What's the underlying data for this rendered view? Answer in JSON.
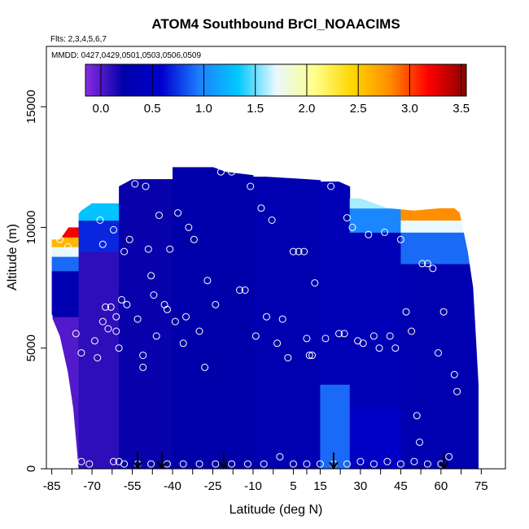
{
  "chart_data": {
    "type": "heatmap",
    "title": "ATOM4 Southbound BrCl_NOAACIMS",
    "notes": {
      "flights": "Flts: 2,3,4,5,6,7",
      "dates": "MMDD: 0427,0429,0501,0503,0506,0509"
    },
    "xlabel": "Latitude (deg N)",
    "ylabel": "Altitude (m)",
    "xlim": [
      -87,
      84
    ],
    "ylim": [
      0,
      17500
    ],
    "xticks": [
      -85,
      -70,
      -55,
      -40,
      -25,
      -10,
      5,
      15,
      30,
      45,
      60,
      75
    ],
    "xtick_labels": [
      "-85",
      "-70",
      "-55",
      "-40",
      "-25",
      "-10",
      "5",
      "15",
      "30",
      "45",
      "60",
      "75"
    ],
    "yticks": [
      0,
      5000,
      10000,
      15000
    ],
    "ytick_labels": [
      "0",
      "5000",
      "10000",
      "15000"
    ],
    "colorbar": {
      "min": -0.15,
      "max": 3.55,
      "ticks": [
        0.0,
        0.5,
        1.0,
        1.5,
        2.0,
        2.5,
        3.0,
        3.5
      ],
      "tick_labels": [
        "0.0",
        "0.5",
        "1.0",
        "1.5",
        "2.0",
        "2.5",
        "3.0",
        "3.5"
      ],
      "colors": [
        "#8a2be2",
        "#0000a8",
        "#0000d0",
        "#1e7fff",
        "#00c8ff",
        "#e8f8ff",
        "#ffff8c",
        "#ffd700",
        "#ff8c00",
        "#ff0000",
        "#8b0000"
      ]
    },
    "profile_arrows_lat": [
      -53,
      -44,
      -21,
      20,
      61
    ],
    "field_boundary": {
      "top": [
        [
          -85,
          9500
        ],
        [
          -82,
          9500
        ],
        [
          -80,
          9800
        ],
        [
          -77,
          10300
        ],
        [
          -74,
          10700
        ],
        [
          -70,
          11000
        ],
        [
          -65,
          11300
        ],
        [
          -60,
          11700
        ],
        [
          -55,
          12000
        ],
        [
          -52,
          12000
        ],
        [
          -48,
          12500
        ],
        [
          -25,
          12500
        ],
        [
          -20,
          12300
        ],
        [
          -5,
          12100
        ],
        [
          10,
          12000
        ],
        [
          22,
          11900
        ],
        [
          26,
          11700
        ],
        [
          30,
          11200
        ],
        [
          40,
          10800
        ],
        [
          50,
          10700
        ],
        [
          60,
          10800
        ],
        [
          65,
          10800
        ],
        [
          67,
          10600
        ],
        [
          70,
          9000
        ],
        [
          72,
          7500
        ],
        [
          73,
          5500
        ],
        [
          74,
          3500
        ],
        [
          74,
          0
        ]
      ],
      "bottom_left": [
        [
          -85,
          6300
        ],
        [
          -82,
          5500
        ],
        [
          -79,
          4000
        ],
        [
          -77,
          2500
        ],
        [
          -75,
          0
        ]
      ]
    },
    "field": [
      {
        "lat": [
          -86,
          -75
        ],
        "alt": [
          0,
          6300
        ],
        "value": 0.0
      },
      {
        "lat": [
          -86,
          -75
        ],
        "alt": [
          6300,
          8200
        ],
        "value": 0.3
      },
      {
        "lat": [
          -86,
          -75
        ],
        "alt": [
          8200,
          8800
        ],
        "value": 0.9
      },
      {
        "lat": [
          -86,
          -75
        ],
        "alt": [
          8800,
          9200
        ],
        "value": 1.7
      },
      {
        "lat": [
          -86,
          -75
        ],
        "alt": [
          9200,
          9600
        ],
        "value": 2.6
      },
      {
        "lat": [
          -86,
          -75
        ],
        "alt": [
          9600,
          10000
        ],
        "value": 3.2
      },
      {
        "lat": [
          -75,
          -60
        ],
        "alt": [
          0,
          9000
        ],
        "value": 0.1
      },
      {
        "lat": [
          -75,
          -60
        ],
        "alt": [
          9000,
          10300
        ],
        "value": 0.7
      },
      {
        "lat": [
          -75,
          -60
        ],
        "alt": [
          10300,
          11000
        ],
        "value": 1.3
      },
      {
        "lat": [
          -60,
          -40
        ],
        "alt": [
          0,
          12000
        ],
        "value": 0.2
      },
      {
        "lat": [
          -40,
          -10
        ],
        "alt": [
          0,
          12500
        ],
        "value": 0.25
      },
      {
        "lat": [
          -10,
          15
        ],
        "alt": [
          0,
          12100
        ],
        "value": 0.3
      },
      {
        "lat": [
          15,
          26
        ],
        "alt": [
          0,
          3500
        ],
        "value": 0.9
      },
      {
        "lat": [
          15,
          26
        ],
        "alt": [
          3500,
          11900
        ],
        "value": 0.35
      },
      {
        "lat": [
          26,
          45
        ],
        "alt": [
          0,
          2500
        ],
        "value": 0.5
      },
      {
        "lat": [
          26,
          45
        ],
        "alt": [
          2500,
          9800
        ],
        "value": 0.35
      },
      {
        "lat": [
          26,
          45
        ],
        "alt": [
          9800,
          10800
        ],
        "value": 1.0
      },
      {
        "lat": [
          26,
          45
        ],
        "alt": [
          10800,
          11200
        ],
        "value": 1.6
      },
      {
        "lat": [
          45,
          74
        ],
        "alt": [
          0,
          8500
        ],
        "value": 0.3
      },
      {
        "lat": [
          45,
          74
        ],
        "alt": [
          8500,
          9800
        ],
        "value": 0.9
      },
      {
        "lat": [
          45,
          74
        ],
        "alt": [
          9800,
          10300
        ],
        "value": 1.7
      },
      {
        "lat": [
          45,
          74
        ],
        "alt": [
          10300,
          10800
        ],
        "value": 2.8
      }
    ],
    "observations": [
      [
        -86,
        6300
      ],
      [
        -82,
        9500
      ],
      [
        -79,
        9200
      ],
      [
        -76,
        5600
      ],
      [
        -74,
        4800
      ],
      [
        -74,
        300
      ],
      [
        -71,
        200
      ],
      [
        -69,
        5300
      ],
      [
        -68,
        4600
      ],
      [
        -67,
        10300
      ],
      [
        -66,
        6100
      ],
      [
        -66,
        9300
      ],
      [
        -65,
        6700
      ],
      [
        -64,
        5800
      ],
      [
        -63,
        6700
      ],
      [
        -62,
        9900
      ],
      [
        -61,
        6300
      ],
      [
        -61,
        5700
      ],
      [
        -60,
        5000
      ],
      [
        -60,
        300
      ],
      [
        -59,
        7000
      ],
      [
        -58,
        9000
      ],
      [
        -57,
        6800
      ],
      [
        -56,
        9500
      ],
      [
        -54,
        11800
      ],
      [
        -53,
        6200
      ],
      [
        -51,
        4700
      ],
      [
        -51,
        4200
      ],
      [
        -50,
        11700
      ],
      [
        -49,
        9100
      ],
      [
        -48,
        8000
      ],
      [
        -47,
        7200
      ],
      [
        -46,
        5500
      ],
      [
        -45,
        10500
      ],
      [
        -43,
        6800
      ],
      [
        -42,
        6600
      ],
      [
        -41,
        9100
      ],
      [
        -39,
        6100
      ],
      [
        -38,
        10600
      ],
      [
        -36,
        5200
      ],
      [
        -35,
        6300
      ],
      [
        -34,
        10000
      ],
      [
        -32,
        9500
      ],
      [
        -30,
        5700
      ],
      [
        -28,
        4200
      ],
      [
        -27,
        7800
      ],
      [
        -24,
        6800
      ],
      [
        -22,
        12300
      ],
      [
        -18,
        12300
      ],
      [
        -15,
        7400
      ],
      [
        -13,
        7400
      ],
      [
        -11,
        11700
      ],
      [
        -9,
        5500
      ],
      [
        -7,
        10800
      ],
      [
        -5,
        6300
      ],
      [
        -3,
        10300
      ],
      [
        -1,
        5200
      ],
      [
        1,
        6200
      ],
      [
        3,
        4600
      ],
      [
        5,
        9000
      ],
      [
        7,
        9000
      ],
      [
        9,
        9000
      ],
      [
        10,
        5400
      ],
      [
        11,
        4700
      ],
      [
        12,
        4700
      ],
      [
        13,
        7700
      ],
      [
        17,
        5400
      ],
      [
        19,
        11700
      ],
      [
        22,
        5600
      ],
      [
        24,
        5600
      ],
      [
        25,
        10400
      ],
      [
        27,
        10000
      ],
      [
        29,
        5300
      ],
      [
        31,
        5200
      ],
      [
        33,
        9700
      ],
      [
        35,
        5500
      ],
      [
        37,
        5000
      ],
      [
        39,
        9800
      ],
      [
        41,
        5500
      ],
      [
        43,
        5000
      ],
      [
        45,
        9500
      ],
      [
        47,
        6500
      ],
      [
        49,
        5700
      ],
      [
        51,
        2200
      ],
      [
        52,
        1100
      ],
      [
        53,
        8500
      ],
      [
        55,
        8500
      ],
      [
        57,
        8300
      ],
      [
        59,
        4800
      ],
      [
        61,
        6500
      ],
      [
        63,
        500
      ],
      [
        65,
        3900
      ],
      [
        66,
        3200
      ],
      [
        -62,
        300
      ],
      [
        -58,
        200
      ],
      [
        -53,
        200
      ],
      [
        -48,
        200
      ],
      [
        -42,
        200
      ],
      [
        -36,
        200
      ],
      [
        -30,
        200
      ],
      [
        -24,
        200
      ],
      [
        -18,
        200
      ],
      [
        -12,
        200
      ],
      [
        -6,
        200
      ],
      [
        0,
        500
      ],
      [
        5,
        200
      ],
      [
        10,
        200
      ],
      [
        15,
        200
      ],
      [
        20,
        200
      ],
      [
        25,
        200
      ],
      [
        30,
        300
      ],
      [
        35,
        200
      ],
      [
        40,
        300
      ],
      [
        45,
        200
      ],
      [
        50,
        300
      ],
      [
        55,
        200
      ],
      [
        60,
        200
      ]
    ]
  }
}
